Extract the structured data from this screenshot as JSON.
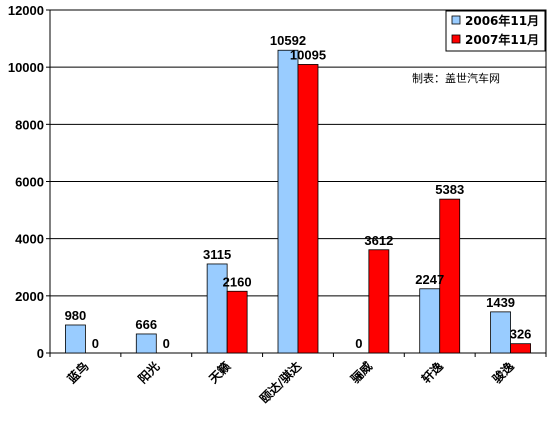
{
  "chart_data": {
    "type": "bar",
    "categories": [
      "蓝鸟",
      "阳光",
      "天籁",
      "颐达/骐达",
      "骊威",
      "轩逸",
      "骏逸"
    ],
    "series": [
      {
        "name": "2006年11月",
        "values": [
          980,
          666,
          3115,
          10592,
          0,
          2247,
          1439
        ],
        "color": "#99CCFF"
      },
      {
        "name": "2007年11月",
        "values": [
          0,
          0,
          2160,
          10095,
          3612,
          5383,
          326
        ],
        "color": "#FF0000"
      }
    ],
    "ylim": [
      0,
      12000
    ],
    "yticks": [
      0,
      2000,
      4000,
      6000,
      8000,
      10000,
      12000
    ],
    "legend_position": "top-right",
    "grid": "horizontal",
    "annotation": "制表：盖世汽车网",
    "title": "",
    "xlabel": "",
    "ylabel": ""
  }
}
